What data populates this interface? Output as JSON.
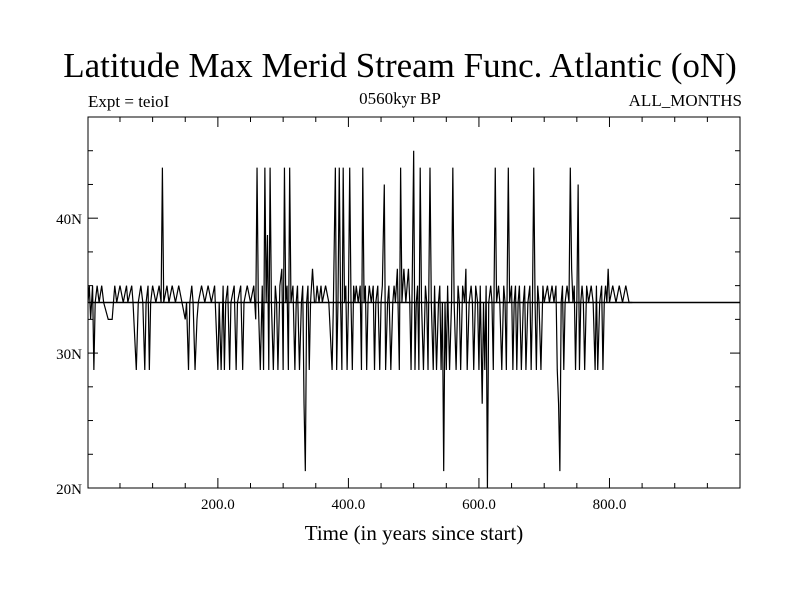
{
  "chart_data": {
    "type": "line",
    "title": "Latitude Max Merid Stream Func. Atlantic (oN)",
    "subtitle_left": "Expt = teioI",
    "subtitle_center": "0560kyr BP",
    "subtitle_right": "ALL_MONTHS",
    "xlabel": "Time (in years since start)",
    "ylabel": "",
    "xlim": [
      1,
      1000
    ],
    "ylim": [
      20,
      47.5
    ],
    "x_ticks": [
      200,
      400,
      600,
      800
    ],
    "x_tick_labels": [
      "200.0",
      "400.0",
      "600.0",
      "800.0"
    ],
    "y_ticks": [
      20,
      30,
      40
    ],
    "y_tick_labels": [
      "20N",
      "30N",
      "40N"
    ],
    "grid": false,
    "legend": "none",
    "color": "#000000",
    "baseline": 33.75,
    "series": [
      {
        "values": [
          [
            1,
            33.75
          ],
          [
            3,
            35
          ],
          [
            5,
            32.5
          ],
          [
            8,
            35
          ],
          [
            10,
            28.75
          ],
          [
            12,
            33.75
          ],
          [
            15,
            35
          ],
          [
            18,
            33.75
          ],
          [
            22,
            35
          ],
          [
            25,
            33.75
          ],
          [
            32,
            32.5
          ],
          [
            38,
            32.5
          ],
          [
            40,
            33.75
          ],
          [
            42,
            35
          ],
          [
            45,
            33.75
          ],
          [
            50,
            35
          ],
          [
            55,
            33.75
          ],
          [
            60,
            35
          ],
          [
            62,
            33.75
          ],
          [
            68,
            35
          ],
          [
            70,
            33.75
          ],
          [
            75,
            28.75
          ],
          [
            78,
            33.75
          ],
          [
            82,
            35
          ],
          [
            85,
            33.75
          ],
          [
            88,
            28.75
          ],
          [
            90,
            33.75
          ],
          [
            93,
            35
          ],
          [
            95,
            28.75
          ],
          [
            97,
            33.75
          ],
          [
            100,
            35
          ],
          [
            105,
            33.75
          ],
          [
            110,
            35
          ],
          [
            113,
            33.75
          ],
          [
            115,
            43.75
          ],
          [
            117,
            33.75
          ],
          [
            122,
            35
          ],
          [
            125,
            33.75
          ],
          [
            130,
            35
          ],
          [
            135,
            33.75
          ],
          [
            140,
            35
          ],
          [
            145,
            33.75
          ],
          [
            150,
            32.5
          ],
          [
            152,
            33.75
          ],
          [
            155,
            28.75
          ],
          [
            157,
            33.75
          ],
          [
            160,
            35
          ],
          [
            162,
            33.75
          ],
          [
            165,
            28.75
          ],
          [
            168,
            32.5
          ],
          [
            170,
            33.75
          ],
          [
            175,
            35
          ],
          [
            180,
            33.75
          ],
          [
            185,
            35
          ],
          [
            190,
            33.75
          ],
          [
            195,
            35
          ],
          [
            200,
            28.75
          ],
          [
            202,
            33.75
          ],
          [
            205,
            28.75
          ],
          [
            208,
            35
          ],
          [
            210,
            28.75
          ],
          [
            212,
            33.75
          ],
          [
            215,
            35
          ],
          [
            218,
            28.75
          ],
          [
            220,
            33.75
          ],
          [
            225,
            35
          ],
          [
            228,
            28.75
          ],
          [
            230,
            33.75
          ],
          [
            235,
            35
          ],
          [
            238,
            28.75
          ],
          [
            240,
            33.75
          ],
          [
            245,
            35
          ],
          [
            250,
            33.75
          ],
          [
            255,
            35
          ],
          [
            258,
            32.5
          ],
          [
            260,
            43.75
          ],
          [
            262,
            33.75
          ],
          [
            265,
            28.75
          ],
          [
            268,
            35
          ],
          [
            270,
            28.75
          ],
          [
            272,
            43.75
          ],
          [
            274,
            33.75
          ],
          [
            276,
            38.75
          ],
          [
            278,
            28.75
          ],
          [
            280,
            43.75
          ],
          [
            282,
            33.75
          ],
          [
            285,
            28.75
          ],
          [
            288,
            35
          ],
          [
            290,
            33.75
          ],
          [
            292,
            28.75
          ],
          [
            295,
            35
          ],
          [
            298,
            36.25
          ],
          [
            300,
            28.75
          ],
          [
            302,
            43.75
          ],
          [
            304,
            33.75
          ],
          [
            306,
            35
          ],
          [
            308,
            28.75
          ],
          [
            310,
            43.75
          ],
          [
            312,
            33.75
          ],
          [
            315,
            35
          ],
          [
            318,
            28.75
          ],
          [
            320,
            33.75
          ],
          [
            322,
            35
          ],
          [
            325,
            28.75
          ],
          [
            328,
            33.75
          ],
          [
            330,
            35
          ],
          [
            332,
            26.25
          ],
          [
            334,
            21.25
          ],
          [
            336,
            33.75
          ],
          [
            338,
            35
          ],
          [
            340,
            28.75
          ],
          [
            342,
            33.75
          ],
          [
            345,
            36.25
          ],
          [
            348,
            33.75
          ],
          [
            350,
            33.75
          ],
          [
            352,
            35
          ],
          [
            355,
            33.75
          ],
          [
            358,
            35
          ],
          [
            360,
            33.75
          ],
          [
            365,
            35
          ],
          [
            370,
            33.75
          ],
          [
            375,
            28.75
          ],
          [
            377,
            33.75
          ],
          [
            380,
            43.75
          ],
          [
            382,
            28.75
          ],
          [
            384,
            33.75
          ],
          [
            386,
            43.75
          ],
          [
            388,
            33.75
          ],
          [
            390,
            28.75
          ],
          [
            392,
            43.75
          ],
          [
            394,
            33.75
          ],
          [
            396,
            35
          ],
          [
            398,
            28.75
          ],
          [
            400,
            33.75
          ],
          [
            402,
            43.75
          ],
          [
            404,
            33.75
          ],
          [
            406,
            28.75
          ],
          [
            408,
            35
          ],
          [
            410,
            33.75
          ],
          [
            412,
            35
          ],
          [
            415,
            33.75
          ],
          [
            418,
            35
          ],
          [
            420,
            28.75
          ],
          [
            422,
            43.75
          ],
          [
            424,
            33.75
          ],
          [
            426,
            35
          ],
          [
            428,
            28.75
          ],
          [
            430,
            33.75
          ],
          [
            432,
            35
          ],
          [
            435,
            33.75
          ],
          [
            438,
            35
          ],
          [
            440,
            28.75
          ],
          [
            442,
            33.75
          ],
          [
            445,
            35
          ],
          [
            448,
            28.75
          ],
          [
            450,
            33.75
          ],
          [
            452,
            35
          ],
          [
            455,
            42.5
          ],
          [
            457,
            28.75
          ],
          [
            460,
            33.75
          ],
          [
            462,
            35
          ],
          [
            465,
            28.75
          ],
          [
            468,
            33.75
          ],
          [
            470,
            35
          ],
          [
            472,
            33.75
          ],
          [
            475,
            36.25
          ],
          [
            478,
            28.75
          ],
          [
            480,
            43.75
          ],
          [
            482,
            33.75
          ],
          [
            485,
            36.25
          ],
          [
            488,
            33.75
          ],
          [
            490,
            35
          ],
          [
            492,
            36.25
          ],
          [
            494,
            33.75
          ],
          [
            496,
            28.75
          ],
          [
            498,
            36.25
          ],
          [
            500,
            45
          ],
          [
            502,
            28.75
          ],
          [
            504,
            33.75
          ],
          [
            506,
            35
          ],
          [
            508,
            28.75
          ],
          [
            510,
            43.75
          ],
          [
            512,
            33.75
          ],
          [
            515,
            28.75
          ],
          [
            518,
            35
          ],
          [
            520,
            33.75
          ],
          [
            522,
            28.75
          ],
          [
            525,
            43.75
          ],
          [
            527,
            33.75
          ],
          [
            530,
            28.75
          ],
          [
            532,
            35
          ],
          [
            535,
            28.75
          ],
          [
            538,
            33.75
          ],
          [
            540,
            35
          ],
          [
            542,
            28.75
          ],
          [
            544,
            33.75
          ],
          [
            546,
            21.25
          ],
          [
            548,
            33.75
          ],
          [
            550,
            28.75
          ],
          [
            552,
            35
          ],
          [
            555,
            28.75
          ],
          [
            558,
            33.75
          ],
          [
            560,
            43.75
          ],
          [
            562,
            33.75
          ],
          [
            565,
            28.75
          ],
          [
            568,
            35
          ],
          [
            570,
            33.75
          ],
          [
            572,
            28.75
          ],
          [
            575,
            35
          ],
          [
            578,
            33.75
          ],
          [
            580,
            36.25
          ],
          [
            582,
            28.75
          ],
          [
            585,
            33.75
          ],
          [
            588,
            35
          ],
          [
            590,
            33.75
          ],
          [
            592,
            28.75
          ],
          [
            595,
            35
          ],
          [
            598,
            33.75
          ],
          [
            600,
            28.75
          ],
          [
            602,
            35
          ],
          [
            605,
            26.25
          ],
          [
            607,
            33.75
          ],
          [
            609,
            28.75
          ],
          [
            611,
            35
          ],
          [
            613,
            20
          ],
          [
            615,
            33.75
          ],
          [
            618,
            35
          ],
          [
            620,
            33.75
          ],
          [
            622,
            28.75
          ],
          [
            625,
            43.75
          ],
          [
            627,
            33.75
          ],
          [
            630,
            35
          ],
          [
            632,
            33.75
          ],
          [
            635,
            28.75
          ],
          [
            638,
            35
          ],
          [
            640,
            33.75
          ],
          [
            642,
            28.75
          ],
          [
            645,
            43.75
          ],
          [
            647,
            33.75
          ],
          [
            650,
            35
          ],
          [
            652,
            28.75
          ],
          [
            654,
            33.75
          ],
          [
            656,
            35
          ],
          [
            658,
            28.75
          ],
          [
            660,
            33.75
          ],
          [
            662,
            35
          ],
          [
            665,
            28.75
          ],
          [
            668,
            33.75
          ],
          [
            670,
            35
          ],
          [
            672,
            28.75
          ],
          [
            675,
            33.75
          ],
          [
            678,
            35
          ],
          [
            680,
            28.75
          ],
          [
            682,
            33.75
          ],
          [
            684,
            43.75
          ],
          [
            686,
            33.75
          ],
          [
            688,
            28.75
          ],
          [
            690,
            35
          ],
          [
            692,
            33.75
          ],
          [
            695,
            28.75
          ],
          [
            698,
            35
          ],
          [
            700,
            33.75
          ],
          [
            705,
            35
          ],
          [
            708,
            33.75
          ],
          [
            712,
            35
          ],
          [
            715,
            33.75
          ],
          [
            718,
            35
          ],
          [
            720,
            28.75
          ],
          [
            722,
            26.25
          ],
          [
            724,
            21.25
          ],
          [
            726,
            33.75
          ],
          [
            728,
            35
          ],
          [
            730,
            28.75
          ],
          [
            732,
            33.75
          ],
          [
            735,
            35
          ],
          [
            738,
            33.75
          ],
          [
            740,
            43.75
          ],
          [
            742,
            36.25
          ],
          [
            744,
            33.75
          ],
          [
            746,
            35
          ],
          [
            748,
            28.75
          ],
          [
            750,
            33.75
          ],
          [
            752,
            42.5
          ],
          [
            754,
            28.75
          ],
          [
            756,
            33.75
          ],
          [
            758,
            35
          ],
          [
            760,
            33.75
          ],
          [
            762,
            28.75
          ],
          [
            765,
            35
          ],
          [
            768,
            33.75
          ],
          [
            772,
            35
          ],
          [
            775,
            33.75
          ],
          [
            778,
            28.75
          ],
          [
            780,
            35
          ],
          [
            782,
            28.75
          ],
          [
            785,
            33.75
          ],
          [
            788,
            35
          ],
          [
            790,
            28.75
          ],
          [
            792,
            33.75
          ],
          [
            794,
            35
          ],
          [
            796,
            33.75
          ],
          [
            798,
            36.25
          ],
          [
            800,
            33.75
          ],
          [
            805,
            35
          ],
          [
            810,
            33.75
          ],
          [
            815,
            35
          ],
          [
            820,
            33.75
          ],
          [
            825,
            35
          ],
          [
            830,
            33.75
          ],
          [
            835,
            33.75
          ]
        ]
      }
    ]
  }
}
